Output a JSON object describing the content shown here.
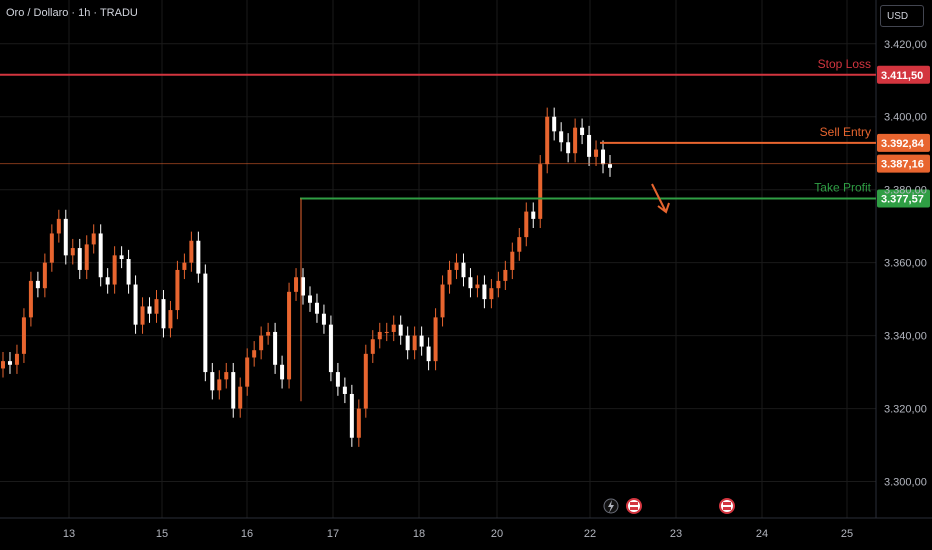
{
  "header": {
    "symbol": "Oro / Dollaro · 1h · TRADU",
    "currency": "USD"
  },
  "colors": {
    "up": "#e8652f",
    "down": "#ffffff",
    "stop": "#d3353f",
    "entry": "#e8652f",
    "take": "#2f9e44",
    "grid": "#1a1a1a"
  },
  "levels": [
    {
      "name": "Stop Loss",
      "price": 3411.5,
      "label": "3.411,50",
      "color": "#d3353f"
    },
    {
      "name": "Sell Entry",
      "price": 3392.84,
      "label": "3.392,84",
      "color": "#e8652f"
    },
    {
      "name": "",
      "price": 3387.16,
      "label": "3.387,16",
      "color": "#e8652f"
    },
    {
      "name": "Take Profit",
      "price": 3377.57,
      "label": "3.377,57",
      "color": "#2f9e44"
    }
  ],
  "chart_data": {
    "type": "candlestick",
    "ylim": [
      3290,
      3432
    ],
    "y_ticks": [
      {
        "v": 3420,
        "label": "3.420,00"
      },
      {
        "v": 3400,
        "label": "3.400,00"
      },
      {
        "v": 3380,
        "label": "3.380,00"
      },
      {
        "v": 3360,
        "label": "3.360,00"
      },
      {
        "v": 3340,
        "label": "3.340,00"
      },
      {
        "v": 3320,
        "label": "3.320,00"
      },
      {
        "v": 3300,
        "label": "3.300,00"
      }
    ],
    "x_labels": [
      "13",
      "15",
      "16",
      "17",
      "18",
      "20",
      "22",
      "23",
      "24",
      "25"
    ],
    "closes": [
      3333,
      3332,
      3335,
      3345,
      3355,
      3353,
      3360,
      3368,
      3372,
      3362,
      3364,
      3358,
      3365,
      3368,
      3356,
      3354,
      3362,
      3361,
      3354,
      3343,
      3348,
      3346,
      3350,
      3342,
      3347,
      3358,
      3360,
      3366,
      3357,
      3330,
      3325,
      3328,
      3330,
      3320,
      3326,
      3334,
      3336,
      3340,
      3341,
      3332,
      3328,
      3352,
      3356,
      3351,
      3349,
      3346,
      3343,
      3330,
      3326,
      3324,
      3312,
      3320,
      3335,
      3339,
      3341,
      3341,
      3343,
      3340,
      3336,
      3340,
      3337,
      3333,
      3345,
      3354,
      3358,
      3360,
      3356,
      3353,
      3354,
      3350,
      3353,
      3355,
      3358,
      3363,
      3367,
      3374,
      3372,
      3387,
      3400,
      3396,
      3393,
      3390,
      3397,
      3395,
      3389,
      3391,
      3387,
      3386
    ],
    "annotations": [
      "Stop Loss",
      "Sell Entry",
      "Take Profit"
    ]
  }
}
